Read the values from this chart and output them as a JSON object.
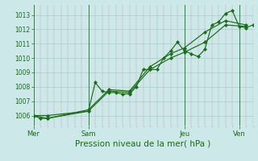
{
  "background_color": "#cce8e8",
  "grid_color": "#aacccc",
  "line_color": "#1a6b1a",
  "marker_color": "#1a6b1a",
  "title": "Pression niveau de la mer( hPa )",
  "title_fontsize": 7.5,
  "ylim": [
    1005.3,
    1013.7
  ],
  "yticks": [
    1006,
    1007,
    1008,
    1009,
    1010,
    1011,
    1012,
    1013
  ],
  "day_labels": [
    "Mer",
    "Sam",
    "Jeu",
    "Ven"
  ],
  "day_positions": [
    0,
    8,
    22,
    30
  ],
  "series1_x": [
    0,
    1,
    2,
    8,
    9,
    10,
    11,
    12,
    13,
    14,
    15,
    16,
    17,
    18,
    19,
    20,
    21,
    22,
    23,
    24,
    25,
    26,
    27,
    28,
    29,
    30,
    31,
    32
  ],
  "series1_y": [
    1006.0,
    1005.8,
    1005.8,
    1006.3,
    1008.3,
    1007.7,
    1007.6,
    1007.6,
    1007.5,
    1007.5,
    1008.0,
    1009.2,
    1009.2,
    1009.2,
    1010.0,
    1010.5,
    1011.1,
    1010.5,
    1010.3,
    1010.1,
    1010.6,
    1012.3,
    1012.5,
    1013.1,
    1013.3,
    1012.2,
    1012.1,
    1012.3
  ],
  "series2_x": [
    0,
    2,
    8,
    11,
    14,
    17,
    20,
    22,
    25,
    28,
    31
  ],
  "series2_y": [
    1006.0,
    1006.0,
    1006.3,
    1007.7,
    1007.6,
    1009.2,
    1010.0,
    1010.4,
    1011.1,
    1012.3,
    1012.2
  ],
  "series3_x": [
    0,
    2,
    8,
    11,
    14,
    17,
    20,
    22,
    25,
    28,
    31
  ],
  "series3_y": [
    1006.0,
    1005.8,
    1006.4,
    1007.8,
    1007.7,
    1009.4,
    1010.3,
    1010.7,
    1011.8,
    1012.6,
    1012.3
  ],
  "xmin": 0,
  "xmax": 32
}
